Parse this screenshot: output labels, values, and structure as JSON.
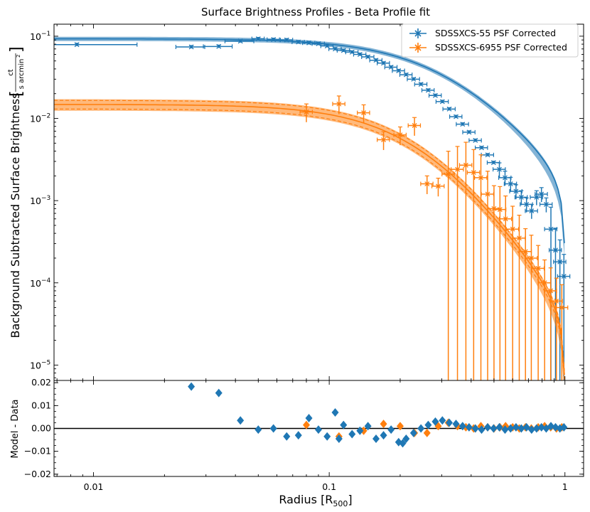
{
  "chart_data": [
    {
      "type": "scatter",
      "title": "Surface Brightness Profiles - Beta Profile fit",
      "xlabel": "Radius [R",
      "xlabel_sub": "500",
      "xlabel_end": "]",
      "ylabel": "Background Subtracted Surface Brightness",
      "yunit_num": "ct",
      "yunit_den": "s arcmin",
      "yunit_exp": "2",
      "xscale": "log",
      "yscale": "log",
      "xlim": [
        0.0068,
        1.2
      ],
      "ylim": [
        6.5e-06,
        0.14
      ],
      "xticks": [
        0.01,
        0.1,
        1
      ],
      "xtick_labels": [
        "0.01",
        "0.1",
        "1"
      ],
      "yticks": [
        1e-05,
        0.0001,
        0.001,
        0.01,
        0.1
      ],
      "ytick_labels": [
        {
          "b": "10",
          "e": "−5"
        },
        {
          "b": "10",
          "e": "−4"
        },
        {
          "b": "10",
          "e": "−3"
        },
        {
          "b": "10",
          "e": "−2"
        },
        {
          "b": "10",
          "e": "−1"
        }
      ],
      "legend_position": "top-right",
      "series": [
        {
          "name": "SDSSXCS-55 PSF Corrected",
          "color": "#1f77b4",
          "model": {
            "S0": 0.093,
            "rc": 0.32,
            "beta": 0.7,
            "cutoff": 1.0
          },
          "x": [
            0.0085,
            0.026,
            0.034,
            0.042,
            0.05,
            0.058,
            0.066,
            0.074,
            0.082,
            0.09,
            0.098,
            0.106,
            0.115,
            0.125,
            0.135,
            0.146,
            0.158,
            0.17,
            0.183,
            0.197,
            0.212,
            0.228,
            0.245,
            0.263,
            0.282,
            0.302,
            0.323,
            0.345,
            0.368,
            0.392,
            0.417,
            0.443,
            0.47,
            0.498,
            0.527,
            0.557,
            0.588,
            0.62,
            0.653,
            0.687,
            0.722,
            0.758,
            0.795,
            0.833,
            0.872,
            0.912,
            0.952,
            0.99
          ],
          "y": [
            0.079,
            0.074,
            0.075,
            0.087,
            0.093,
            0.091,
            0.09,
            0.085,
            0.083,
            0.081,
            0.076,
            0.07,
            0.067,
            0.064,
            0.06,
            0.056,
            0.051,
            0.047,
            0.042,
            0.038,
            0.034,
            0.03,
            0.026,
            0.022,
            0.019,
            0.016,
            0.013,
            0.0105,
            0.0085,
            0.0068,
            0.0054,
            0.0044,
            0.0036,
            0.0029,
            0.0024,
            0.0019,
            0.0016,
            0.0013,
            0.0011,
            0.0009,
            0.00075,
            0.0011,
            0.0012,
            0.0009,
            0.00045,
            0.00025,
            0.00018,
            0.00012
          ]
        },
        {
          "name": "SDSSXCS-6955 PSF Corrected",
          "color": "#ff7f0e",
          "model": {
            "S0": 0.0148,
            "rc": 0.26,
            "beta": 0.85,
            "cutoff": 1.0
          },
          "x": [
            0.08,
            0.11,
            0.14,
            0.17,
            0.2,
            0.23,
            0.26,
            0.29,
            0.32,
            0.35,
            0.38,
            0.41,
            0.44,
            0.47,
            0.5,
            0.53,
            0.56,
            0.6,
            0.64,
            0.68,
            0.72,
            0.77,
            0.82,
            0.87,
            0.92,
            0.97
          ],
          "y": [
            0.012,
            0.015,
            0.0117,
            0.0055,
            0.0063,
            0.0082,
            0.0016,
            0.0015,
            0.0021,
            0.0024,
            0.0027,
            0.0022,
            0.0019,
            0.0012,
            0.0008,
            0.00078,
            0.0006,
            0.00045,
            0.00035,
            0.00024,
            0.0002,
            0.00015,
            0.0001,
            8e-05,
            6e-05,
            5e-05
          ]
        }
      ]
    },
    {
      "type": "scatter",
      "ylabel": "Model - Data",
      "xscale": "log",
      "xlim": [
        0.0068,
        1.2
      ],
      "ylim": [
        -0.021,
        0.021
      ],
      "yticks": [
        -0.02,
        -0.01,
        0.0,
        0.01,
        0.02
      ],
      "ytick_labels": [
        "−0.02",
        "−0.01",
        "0.00",
        "0.01",
        "0.02"
      ],
      "reference_line": 0,
      "series": [
        {
          "name": "SDSSXCS-55 PSF Corrected",
          "color": "#1f77b4",
          "x": [
            0.026,
            0.034,
            0.042,
            0.05,
            0.058,
            0.066,
            0.074,
            0.082,
            0.09,
            0.098,
            0.106,
            0.11,
            0.115,
            0.125,
            0.135,
            0.146,
            0.158,
            0.17,
            0.183,
            0.197,
            0.205,
            0.212,
            0.228,
            0.245,
            0.263,
            0.282,
            0.302,
            0.323,
            0.345,
            0.368,
            0.392,
            0.417,
            0.443,
            0.47,
            0.498,
            0.527,
            0.557,
            0.588,
            0.62,
            0.653,
            0.687,
            0.722,
            0.758,
            0.795,
            0.833,
            0.872,
            0.912,
            0.952,
            0.99
          ],
          "y": [
            0.0183,
            0.0155,
            0.0035,
            -0.0005,
            0.0,
            -0.0035,
            -0.003,
            0.0045,
            -0.0005,
            -0.0035,
            0.007,
            -0.0045,
            0.0015,
            -0.0025,
            -0.001,
            0.001,
            -0.0045,
            -0.003,
            -0.0005,
            -0.006,
            -0.0065,
            -0.0045,
            -0.002,
            0.0,
            0.0015,
            0.003,
            0.0035,
            0.0025,
            0.002,
            0.001,
            0.0005,
            0.0,
            -0.0005,
            0.0005,
            0.0,
            0.0005,
            -0.0005,
            0.0,
            0.0005,
            0.0,
            0.0005,
            -0.0005,
            0.0,
            0.0005,
            0.0,
            0.001,
            0.0005,
            0.0,
            0.0005
          ]
        },
        {
          "name": "SDSSXCS-6955 PSF Corrected",
          "color": "#ff7f0e",
          "x": [
            0.08,
            0.11,
            0.14,
            0.17,
            0.2,
            0.23,
            0.26,
            0.29,
            0.32,
            0.35,
            0.38,
            0.41,
            0.44,
            0.47,
            0.5,
            0.53,
            0.56,
            0.6,
            0.64,
            0.68,
            0.72,
            0.77,
            0.82,
            0.87,
            0.92,
            0.97
          ],
          "y": [
            0.0015,
            -0.0035,
            -0.001,
            0.002,
            0.001,
            -0.002,
            -0.002,
            0.001,
            0.0025,
            0.001,
            0.0005,
            0.0,
            0.001,
            0.0005,
            0.0,
            0.0005,
            0.001,
            0.0005,
            0.0,
            0.0005,
            0.0,
            0.0005,
            0.001,
            0.0005,
            0.0,
            0.0005
          ]
        }
      ]
    }
  ]
}
